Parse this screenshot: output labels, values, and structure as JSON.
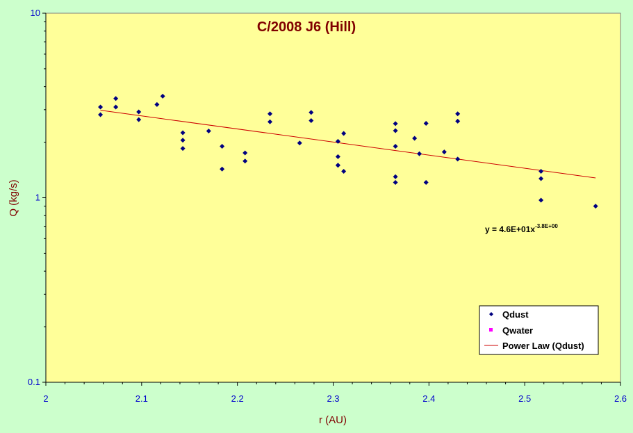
{
  "chart_data": {
    "type": "scatter",
    "title": "C/2008 J6 (Hill)",
    "xlabel": "r (AU)",
    "ylabel": "Q (kg/s)",
    "xlim": [
      2,
      2.6
    ],
    "ylim": [
      0.1,
      10
    ],
    "yscale": "log",
    "x_ticks": [
      "2",
      "2.1",
      "2.2",
      "2.3",
      "2.4",
      "2.5",
      "2.6"
    ],
    "y_ticks": [
      "0.1",
      "1",
      "10"
    ],
    "grid": false,
    "legend_position": "bottom-right",
    "colors": {
      "background": "#ccffcc",
      "plot_area": "#ffff99",
      "qdust": "#000080",
      "qwater": "#ff00ff",
      "power_law": "#cc0000"
    },
    "series": [
      {
        "name": "Qdust",
        "marker": "diamond",
        "x": [
          2.057,
          2.057,
          2.073,
          2.073,
          2.097,
          2.097,
          2.116,
          2.122,
          2.143,
          2.143,
          2.143,
          2.17,
          2.184,
          2.184,
          2.208,
          2.208,
          2.234,
          2.234,
          2.265,
          2.277,
          2.277,
          2.305,
          2.305,
          2.305,
          2.305,
          2.311,
          2.311,
          2.365,
          2.365,
          2.365,
          2.365,
          2.365,
          2.385,
          2.39,
          2.397,
          2.397,
          2.416,
          2.43,
          2.43,
          2.43,
          2.517,
          2.517,
          2.517,
          2.574
        ],
        "y": [
          3.1,
          2.82,
          3.45,
          3.1,
          2.92,
          2.65,
          3.2,
          3.55,
          2.25,
          2.05,
          1.85,
          2.3,
          1.9,
          1.43,
          1.75,
          1.58,
          2.85,
          2.58,
          1.98,
          2.9,
          2.62,
          2.02,
          1.67,
          1.5,
          1.5,
          2.23,
          1.39,
          2.52,
          2.31,
          1.9,
          1.3,
          1.21,
          2.1,
          1.73,
          2.53,
          1.21,
          1.77,
          2.85,
          2.6,
          1.62,
          1.39,
          1.27,
          0.97,
          0.9
        ]
      },
      {
        "name": "Qwater",
        "marker": "square",
        "x": [],
        "y": []
      },
      {
        "name": "Power Law (Qdust)",
        "type": "line",
        "x": [
          2.057,
          2.574
        ],
        "y": [
          2.98,
          1.28
        ]
      }
    ],
    "annotations": [
      {
        "base": "y = 4.6E+01x",
        "sup": "-3.8E+00",
        "position": "right-middle"
      }
    ]
  }
}
